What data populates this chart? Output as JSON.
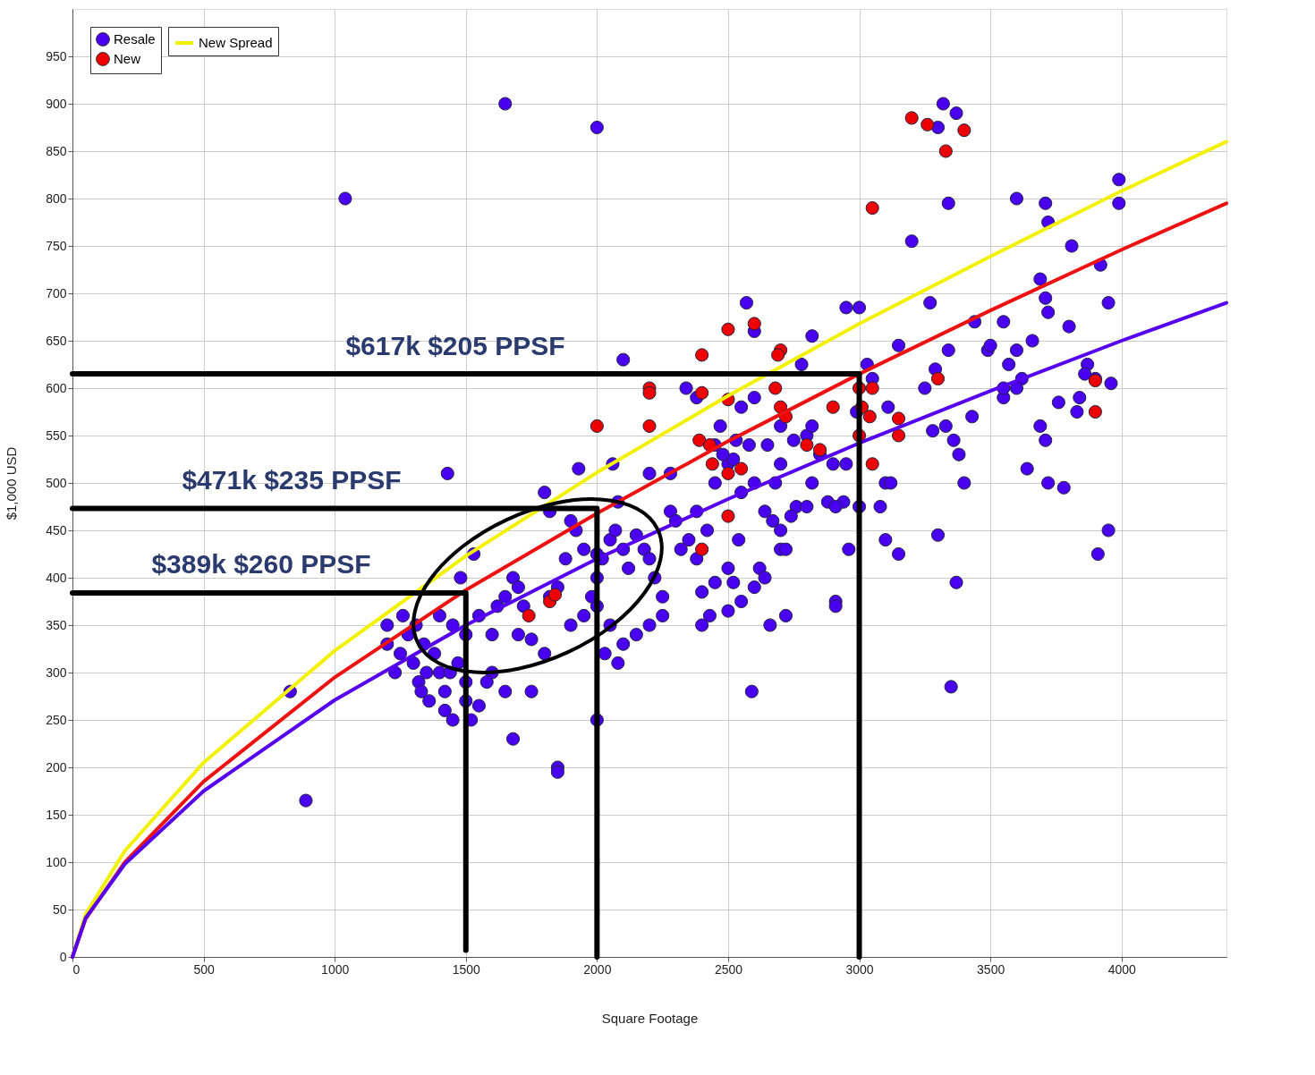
{
  "chart_data": {
    "type": "scatter",
    "xlabel": "Square Footage",
    "ylabel": "$1,000 USD",
    "xlim": [
      0,
      4400
    ],
    "ylim": [
      0,
      1000
    ],
    "xticks": [
      0,
      500,
      1000,
      1500,
      2000,
      2500,
      3000,
      3500,
      4000
    ],
    "yticks": [
      0,
      50,
      100,
      150,
      200,
      250,
      300,
      350,
      400,
      450,
      500,
      550,
      600,
      650,
      700,
      750,
      800,
      850,
      900,
      950
    ],
    "grid": true,
    "legend": "top left",
    "series": [
      {
        "name": "Resale",
        "marker": "circle",
        "color": "#4a00f0",
        "x": [
          1040,
          1650,
          2000,
          890,
          830,
          1850,
          1850,
          2000,
          1680,
          1550,
          1430,
          1530,
          1480,
          2100,
          2060,
          3320,
          3370,
          3300,
          3340,
          3200,
          3270,
          3000,
          2950,
          2570,
          2600,
          2820,
          2780,
          3030,
          3050,
          3110,
          3150,
          3250,
          3290,
          3340,
          3330,
          3280,
          3360,
          3380,
          3400,
          3100,
          3120,
          3080,
          3100,
          3150,
          3300,
          3370,
          3350,
          3600,
          3710,
          3720,
          3990,
          3990,
          3690,
          3710,
          3720,
          3810,
          3920,
          3800,
          3950,
          3440,
          3490,
          3500,
          3550,
          3570,
          3600,
          3620,
          3660,
          3550,
          3550,
          3600,
          3690,
          3710,
          3760,
          3840,
          3830,
          3870,
          3900,
          3960,
          3430,
          3640,
          3720,
          3780,
          3910,
          3950,
          3860,
          2340,
          2380,
          2550,
          2470,
          2580,
          2600,
          2650,
          2700,
          2750,
          2800,
          2820,
          2850,
          2900,
          2880,
          2950,
          2990,
          2940,
          2910,
          2960,
          3000,
          2700,
          2680,
          2600,
          2550,
          2500,
          2450,
          2420,
          2380,
          2350,
          2320,
          2380,
          2400,
          2450,
          2500,
          2540,
          2520,
          2620,
          2640,
          2600,
          2700,
          2720,
          2760,
          2800,
          2820,
          2400,
          2430,
          2500,
          2550,
          2660,
          2720,
          2590,
          2910,
          2910,
          2520,
          2450,
          2480,
          2530,
          2640,
          2670,
          2700,
          2740,
          1200,
          1200,
          1230,
          1250,
          1280,
          1300,
          1320,
          1330,
          1350,
          1380,
          1400,
          1420,
          1450,
          1500,
          1520,
          1420,
          1470,
          1360,
          1260,
          1310,
          1400,
          1450,
          1500,
          1550,
          1600,
          1620,
          1650,
          1680,
          1700,
          1720,
          1750,
          1800,
          1820,
          1850,
          1880,
          1900,
          1950,
          1980,
          2000,
          2020,
          2050,
          2070,
          2100,
          2120,
          2150,
          2180,
          2200,
          2220,
          2250,
          2250,
          2200,
          2150,
          2100,
          2050,
          2000,
          1950,
          1920,
          1900,
          1800,
          1820,
          1930,
          2000,
          2080,
          1650,
          1750,
          1600,
          1580,
          1700,
          2030,
          2080,
          2280,
          2300,
          2280,
          2200,
          1500,
          1440,
          1340
        ],
        "values": [
          800,
          900,
          875,
          165,
          280,
          200,
          195,
          250,
          230,
          265,
          510,
          425,
          400,
          630,
          520,
          900,
          890,
          875,
          795,
          755,
          690,
          685,
          685,
          690,
          660,
          655,
          625,
          625,
          610,
          580,
          645,
          600,
          620,
          640,
          560,
          555,
          545,
          530,
          500,
          500,
          500,
          475,
          440,
          425,
          445,
          395,
          285,
          800,
          795,
          775,
          820,
          795,
          715,
          695,
          680,
          750,
          730,
          665,
          690,
          670,
          640,
          645,
          670,
          625,
          640,
          610,
          650,
          590,
          600,
          600,
          560,
          545,
          585,
          590,
          575,
          625,
          610,
          605,
          570,
          515,
          500,
          495,
          425,
          450,
          615,
          600,
          590,
          580,
          560,
          540,
          590,
          540,
          560,
          545,
          550,
          560,
          530,
          520,
          480,
          520,
          575,
          480,
          475,
          430,
          475,
          520,
          500,
          500,
          490,
          520,
          500,
          450,
          470,
          440,
          430,
          420,
          385,
          395,
          410,
          440,
          395,
          410,
          400,
          390,
          430,
          430,
          475,
          475,
          500,
          350,
          360,
          365,
          375,
          350,
          360,
          280,
          375,
          370,
          525,
          540,
          530,
          545,
          470,
          460,
          450,
          465,
          350,
          330,
          300,
          320,
          340,
          310,
          290,
          280,
          300,
          320,
          300,
          260,
          250,
          290,
          250,
          280,
          310,
          270,
          360,
          350,
          360,
          350,
          340,
          360,
          340,
          370,
          380,
          400,
          390,
          370,
          335,
          320,
          380,
          390,
          420,
          350,
          360,
          380,
          400,
          420,
          440,
          450,
          430,
          410,
          445,
          430,
          420,
          400,
          380,
          360,
          350,
          340,
          330,
          350,
          370,
          430,
          450,
          460,
          490,
          470,
          515,
          425,
          480,
          280,
          280,
          300,
          290,
          340,
          320,
          310,
          470,
          460,
          510,
          510,
          270,
          300,
          330
        ]
      },
      {
        "name": "New",
        "marker": "circle",
        "color": "#ee0000",
        "x": [
          3200,
          3260,
          3330,
          3400,
          3050,
          2500,
          2600,
          2700,
          2690,
          2400,
          2400,
          2200,
          2200,
          2500,
          2680,
          2700,
          2720,
          2900,
          3000,
          3010,
          3050,
          3040,
          3000,
          3150,
          3150,
          3050,
          3300,
          3900,
          3900,
          2200,
          2390,
          2430,
          2440,
          2500,
          2550,
          2850,
          2800,
          2000,
          2500,
          2400,
          1740,
          1820,
          1840
        ],
        "values": [
          885,
          878,
          850,
          872,
          790,
          662,
          668,
          640,
          635,
          635,
          595,
          600,
          595,
          588,
          600,
          580,
          570,
          580,
          600,
          580,
          600,
          570,
          550,
          568,
          550,
          520,
          610,
          608,
          575,
          560,
          545,
          540,
          520,
          510,
          515,
          535,
          540,
          560,
          465,
          430,
          360,
          375,
          382
        ]
      },
      {
        "name": "New Spread",
        "type": "line",
        "color": "#f2f200",
        "x": [
          0,
          50,
          200,
          500,
          1000,
          1500,
          2000,
          2500,
          3000,
          3500,
          4000,
          4400
        ],
        "values": [
          0,
          45,
          112,
          205,
          323,
          423,
          511,
          592,
          668,
          739,
          808,
          860
        ]
      },
      {
        "type": "line",
        "color": "#ee1111",
        "x": [
          0,
          50,
          200,
          500,
          1000,
          1500,
          2000,
          2500,
          3000,
          3500,
          4000,
          4400
        ],
        "values": [
          0,
          40,
          100,
          185,
          295,
          387,
          468,
          544,
          615,
          682,
          746,
          795
        ]
      },
      {
        "type": "line",
        "color": "#5500ee",
        "x": [
          0,
          50,
          200,
          500,
          1000,
          1500,
          2000,
          2500,
          3000,
          3500,
          4000,
          4400
        ],
        "values": [
          0,
          41,
          98,
          175,
          271,
          350,
          420,
          483,
          542,
          597,
          650,
          690
        ]
      },
      {
        "type": "line",
        "color": "#000000",
        "x": [
          0,
          1500,
          1500
        ],
        "values": [
          384,
          384,
          7
        ]
      },
      {
        "type": "line",
        "color": "#000000",
        "x": [
          0,
          2000,
          2000
        ],
        "values": [
          473,
          473,
          0
        ]
      },
      {
        "type": "line",
        "color": "#000000",
        "x": [
          0,
          3000,
          3000
        ],
        "values": [
          615,
          615,
          0
        ]
      }
    ],
    "annotations": [
      "$617k  $205 PPSF",
      "$471k   $235 PPSF",
      "$389k   $260 PPSF"
    ]
  }
}
